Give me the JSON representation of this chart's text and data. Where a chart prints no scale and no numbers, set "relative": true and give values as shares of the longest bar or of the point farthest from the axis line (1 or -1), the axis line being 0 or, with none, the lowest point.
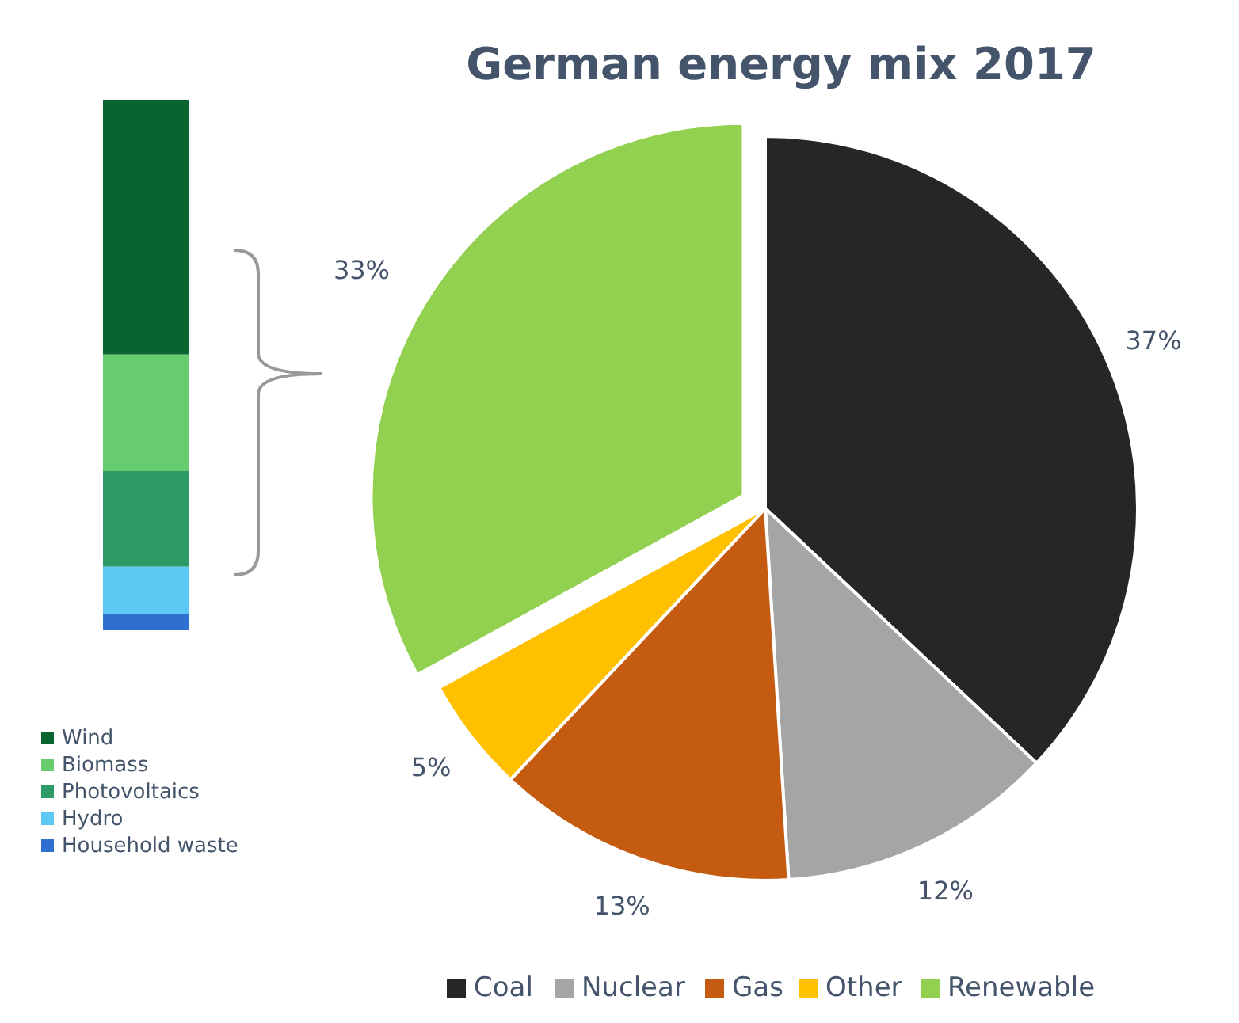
{
  "chart_data": [
    {
      "type": "pie",
      "title": "German energy mix 2017",
      "categories": [
        "Coal",
        "Nuclear",
        "Gas",
        "Other",
        "Renewable"
      ],
      "values": [
        37,
        12,
        13,
        5,
        33
      ],
      "colors": [
        "#262626",
        "#a5a5a5",
        "#c55a11",
        "#ffc000",
        "#92d050"
      ],
      "value_labels": [
        "37%",
        "12%",
        "13%",
        "5%",
        "33%"
      ],
      "legend": "bottom"
    },
    {
      "type": "bar",
      "stacked": true,
      "relative": true,
      "categories": [
        null
      ],
      "legend": "bottom",
      "series": [
        {
          "name": "Household waste",
          "color": "#2f6fd0",
          "values": [
            0.03
          ]
        },
        {
          "name": "Hydro",
          "color": "#5ec8f5",
          "values": [
            0.09
          ]
        },
        {
          "name": "Photovoltaics",
          "color": "#2e9a68",
          "values": [
            0.18
          ]
        },
        {
          "name": "Biomass",
          "color": "#66cc6e",
          "values": [
            0.22
          ]
        },
        {
          "name": "Wind",
          "color": "#0a6430",
          "values": [
            0.48
          ]
        }
      ]
    }
  ]
}
